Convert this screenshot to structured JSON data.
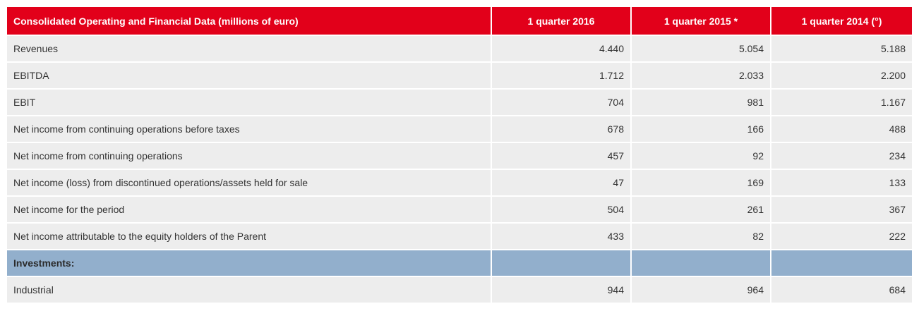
{
  "table": {
    "headers": [
      "Consolidated Operating and Financial Data (millions of euro)",
      "1 quarter 2016",
      "1 quarter 2015 *",
      "1 quarter 2014 (°)"
    ],
    "rows": [
      {
        "label": "Revenues",
        "values": [
          "4.440",
          "5.054",
          "5.188"
        ]
      },
      {
        "label": "EBITDA",
        "values": [
          "1.712",
          "2.033",
          "2.200"
        ]
      },
      {
        "label": "EBIT",
        "values": [
          "704",
          "981",
          "1.167"
        ]
      },
      {
        "label": "Net income from continuing operations before taxes",
        "values": [
          "678",
          "166",
          "488"
        ]
      },
      {
        "label": "Net income from continuing operations",
        "values": [
          "457",
          "92",
          "234"
        ]
      },
      {
        "label": "Net income (loss) from discontinued operations/assets held for sale",
        "values": [
          "47",
          "169",
          "133"
        ]
      },
      {
        "label": "Net income for the period",
        "values": [
          "504",
          "261",
          "367"
        ]
      },
      {
        "label": "Net income attributable to the equity holders of the Parent",
        "values": [
          "433",
          "82",
          "222"
        ]
      },
      {
        "label": "Investments:",
        "values": [
          "",
          "",
          ""
        ],
        "section": true
      },
      {
        "label": "Industrial",
        "values": [
          "944",
          "964",
          "684"
        ]
      }
    ],
    "colors": {
      "header_bg": "#e2001a",
      "row_bg": "#ededed",
      "section_bg": "#92afcc"
    }
  }
}
